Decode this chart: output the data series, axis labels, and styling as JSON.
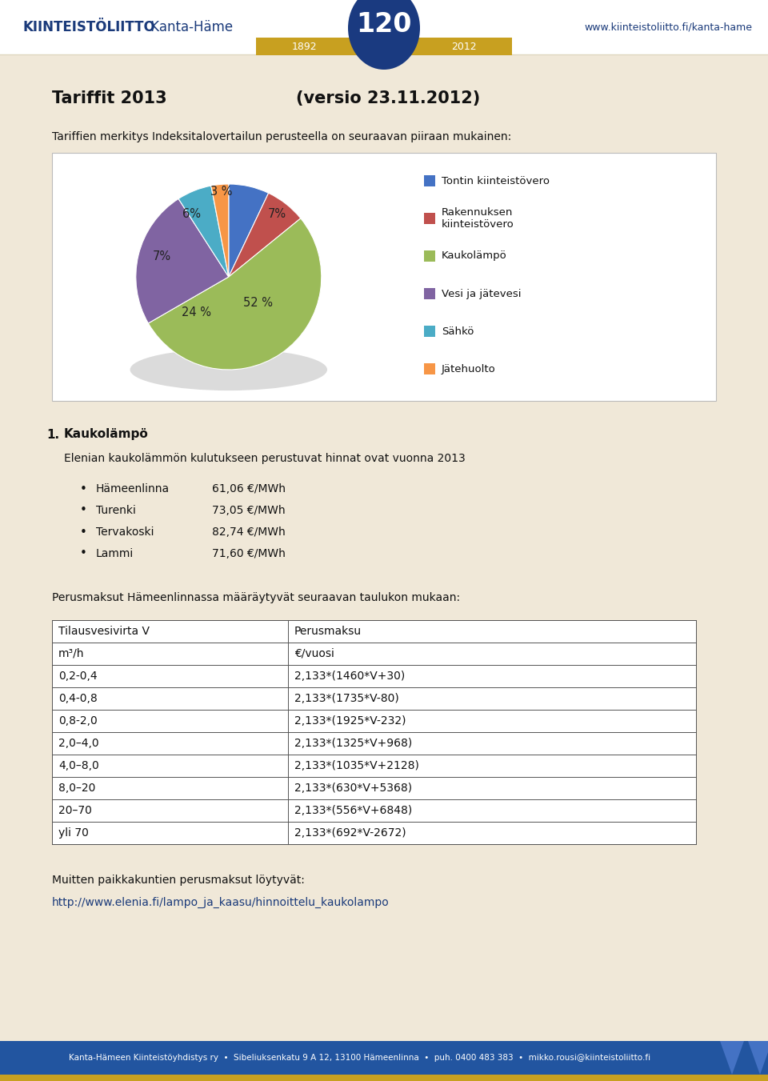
{
  "page_bg": "#f0e8d8",
  "header_bg": "#ffffff",
  "header_left_bold": "KIINTEISTÖLIITTO",
  "header_left_regular": " Kanta-Häme",
  "header_right_text": "www.kiinteistoliitto.fi/kanta-hame",
  "banner_color": "#c8a020",
  "circle_color": "#1a3a80",
  "title_left": "Tariffit 2013",
  "title_right": "(versio 23.11.2012)",
  "subtitle": "Tariffien merkitys Indeksitalovertailun perusteella on seuraavan piiraan mukainen:",
  "pie_values": [
    7,
    7,
    52,
    24,
    6,
    3
  ],
  "pie_labels_text": [
    "7%",
    "7%",
    "52 %",
    "24 %",
    "6%",
    "3 %"
  ],
  "pie_colors": [
    "#c0504d",
    "#9bbb59",
    "#9bbb59",
    "#8064a2",
    "#4bacc6",
    "#f79646"
  ],
  "pie_colors_real": [
    "#c0504d",
    "#8db05a",
    "#8db05a",
    "#8064a2",
    "#4bacc6",
    "#f79646"
  ],
  "legend_labels": [
    "Tontin kiinteistövero",
    "Rakennuksen\nkiinteistövero",
    "Kaukolämpö",
    "Vesi ja jätevesi",
    "Sähkö",
    "Jätehuolto"
  ],
  "legend_colors": [
    "#4472c4",
    "#c0504d",
    "#9bbb59",
    "#8064a2",
    "#4bacc6",
    "#f79646"
  ],
  "section_title": "Kaukolämpö",
  "section_intro": "Elenian kaukolämmön kulutukseen perustuvat hinnat ovat vuonna 2013",
  "bullet_items": [
    [
      "Hämeenlinna",
      "61,06 €/MWh"
    ],
    [
      "Turenki",
      "73,05 €/MWh"
    ],
    [
      "Tervakoski",
      "82,74 €/MWh"
    ],
    [
      "Lammi",
      "71,60 €/MWh"
    ]
  ],
  "perus_intro": "Perusmaksut Hämeenlinnassa määräytyvät seuraavan taulukon mukaan:",
  "table_header1": "Tilausvesivirta V",
  "table_header1b": "m³/h",
  "table_header2": "Perusmaksu",
  "table_header2b": "€/vuosi",
  "table_rows": [
    [
      "0,2-0,4",
      "2,133*(1460*V+30)"
    ],
    [
      "0,4-0,8",
      "2,133*(1735*V-80)"
    ],
    [
      "0,8-2,0",
      "2,133*(1925*V-232)"
    ],
    [
      "2,0–4,0",
      "2,133*(1325*V+968)"
    ],
    [
      "4,0–8,0",
      "2,133*(1035*V+2128)"
    ],
    [
      "8,0–20",
      "2,133*(630*V+5368)"
    ],
    [
      "20–70",
      "2,133*(556*V+6848)"
    ],
    [
      "yli 70",
      "2,133*(692*V-2672)"
    ]
  ],
  "footer_note1": "Muitten paikkakuntien perusmaksut löytyvät:",
  "footer_note2": "http://www.elenia.fi/lampo_ja_kaasu/hinnoittelu_kaukolampo",
  "footer_text": "Kanta-Hämeen Kiinteistöyhdistys ry  •  Sibeliuksenkatu 9 A 12, 13100 Hämeenlinna  •  puh. 0400 483 383  •  mikko.rousi@kiinteistoliitto.fi",
  "footer_bg": "#2255a0",
  "footer_stripe_gold": "#c8a020",
  "footer_stripe_green": "#8db05a"
}
